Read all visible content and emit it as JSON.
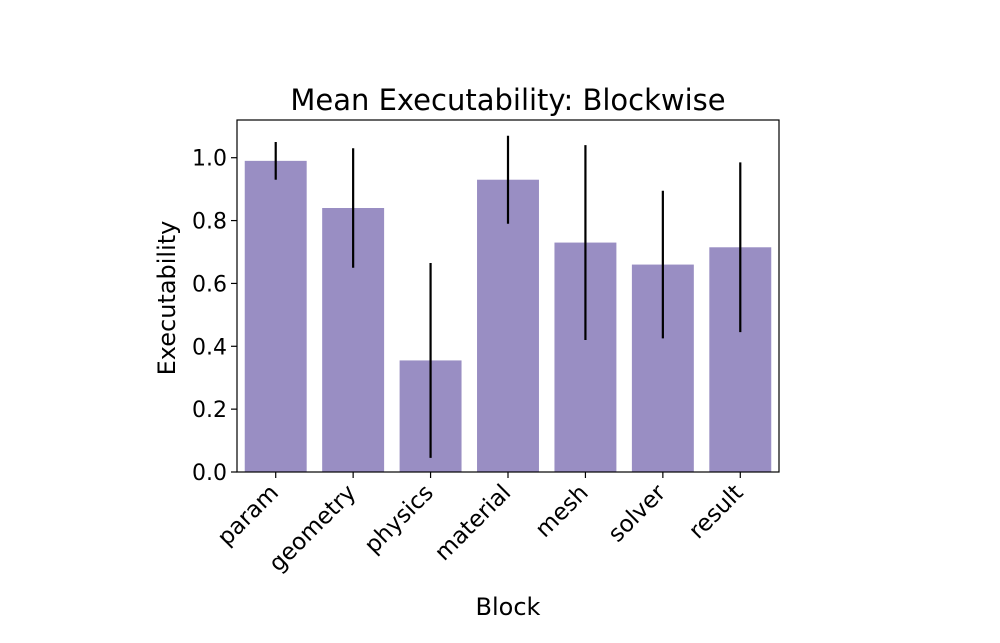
{
  "chart_data": {
    "type": "bar",
    "title": "Mean Executability: Blockwise",
    "xlabel": "Block",
    "ylabel": "Executability",
    "categories": [
      "param",
      "geometry",
      "physics",
      "material",
      "mesh",
      "solver",
      "result"
    ],
    "values": [
      0.99,
      0.84,
      0.355,
      0.93,
      0.73,
      0.66,
      0.715
    ],
    "errors": [
      0.06,
      0.19,
      0.31,
      0.14,
      0.31,
      0.235,
      0.27
    ],
    "ylim": [
      0,
      1.12
    ],
    "yticks": [
      "0.0",
      "0.2",
      "0.4",
      "0.6",
      "0.8",
      "1.0"
    ],
    "grid": false,
    "colors": {
      "bar": "#998ec3",
      "error": "#000000"
    }
  }
}
